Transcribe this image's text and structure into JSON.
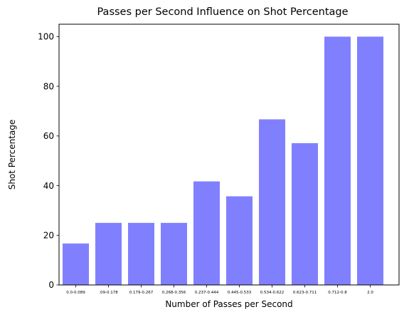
{
  "chart_data": {
    "type": "bar",
    "title": "Passes per Second Influence on Shot Percentage",
    "xlabel": "Number of Passes per Second",
    "ylabel": "Shot Percentage",
    "categories": [
      "0.0-0.089",
      ".09-0.178",
      "0.179-0.267",
      "0.268-0.356",
      "0.237-0.444",
      "0.445-0.533",
      "0.534-0.622",
      "0.623-0.711",
      "0.712-0.8",
      "2.0"
    ],
    "values": [
      16.7,
      25.0,
      25.0,
      25.0,
      41.7,
      35.7,
      66.7,
      57.1,
      100.0,
      100.0
    ],
    "ylim": [
      0,
      105
    ],
    "yticks": [
      0,
      20,
      40,
      60,
      80,
      100
    ],
    "bar_color": "#8080ff",
    "grid": false
  }
}
